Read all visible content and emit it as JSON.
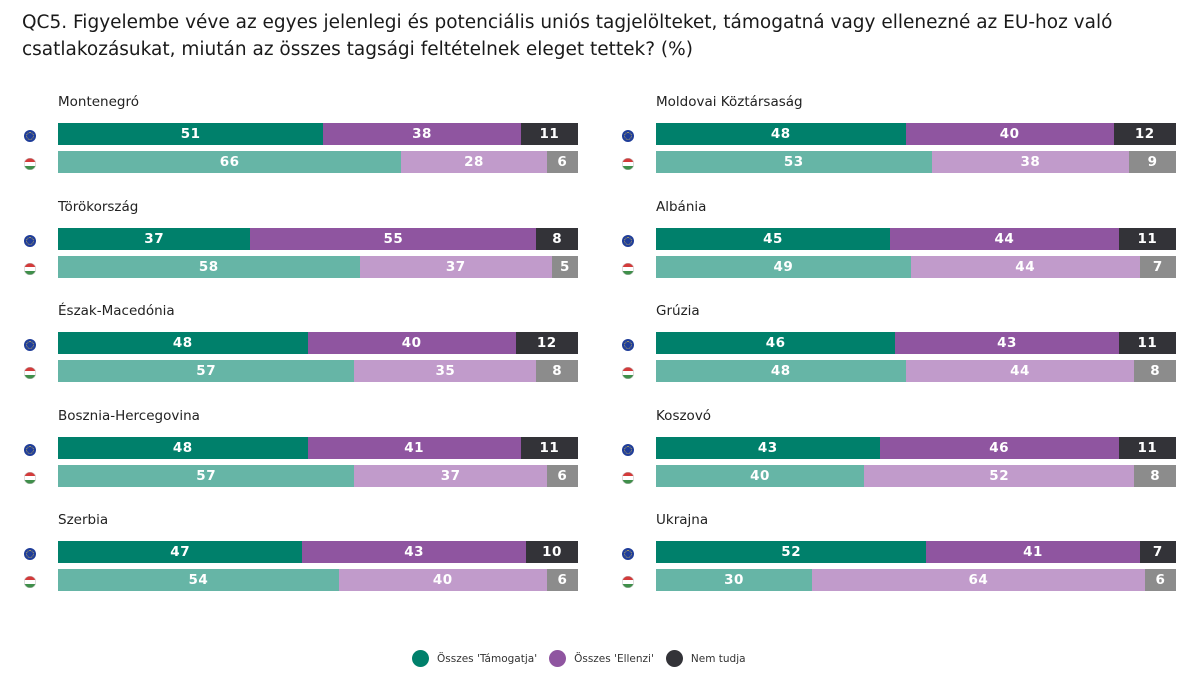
{
  "title": "QC5. Figyelembe véve az egyes jelenlegi és potenciális uniós tagjelölteket, támogatná vagy ellenezné az EU-hoz való csatlakozásukat, miután az összes tagsági feltételnek eleget tettek? (%)",
  "colors": {
    "eu": {
      "support": "#00806b",
      "oppose": "#8f55a0",
      "dk": "#333338"
    },
    "hu": {
      "support": "#66b5a6",
      "oppose": "#c19bcb",
      "dk": "#8c8c8c"
    }
  },
  "legend": [
    {
      "label": "Összes 'Támogatja'",
      "color": "#00806b"
    },
    {
      "label": "Összes 'Ellenzi'",
      "color": "#8f55a0"
    },
    {
      "label": "Nem tudja",
      "color": "#333338"
    }
  ],
  "chart_data": {
    "type": "bar",
    "stacked": true,
    "orientation": "horizontal",
    "series": [
      "Összes 'Támogatja'",
      "Összes 'Ellenzi'",
      "Nem tudja"
    ],
    "rows": [
      "EU",
      "HU"
    ],
    "countries": [
      {
        "name": "Montenegró",
        "eu": [
          51,
          38,
          11
        ],
        "hu": [
          66,
          28,
          6
        ]
      },
      {
        "name": "Törökország",
        "eu": [
          37,
          55,
          8
        ],
        "hu": [
          58,
          37,
          5
        ]
      },
      {
        "name": "Észak-Macedónia",
        "eu": [
          48,
          40,
          12
        ],
        "hu": [
          57,
          35,
          8
        ]
      },
      {
        "name": "Bosznia-Hercegovina",
        "eu": [
          48,
          41,
          11
        ],
        "hu": [
          57,
          37,
          6
        ]
      },
      {
        "name": "Szerbia",
        "eu": [
          47,
          43,
          10
        ],
        "hu": [
          54,
          40,
          6
        ]
      },
      {
        "name": "Moldovai Köztársaság",
        "eu": [
          48,
          40,
          12
        ],
        "hu": [
          53,
          38,
          9
        ]
      },
      {
        "name": "Albánia",
        "eu": [
          45,
          44,
          11
        ],
        "hu": [
          49,
          44,
          7
        ]
      },
      {
        "name": "Grúzia",
        "eu": [
          46,
          43,
          11
        ],
        "hu": [
          48,
          44,
          8
        ]
      },
      {
        "name": "Koszovó",
        "eu": [
          43,
          46,
          11
        ],
        "hu": [
          40,
          52,
          8
        ]
      },
      {
        "name": "Ukrajna",
        "eu": [
          52,
          41,
          7
        ],
        "hu": [
          30,
          64,
          6
        ]
      }
    ]
  }
}
